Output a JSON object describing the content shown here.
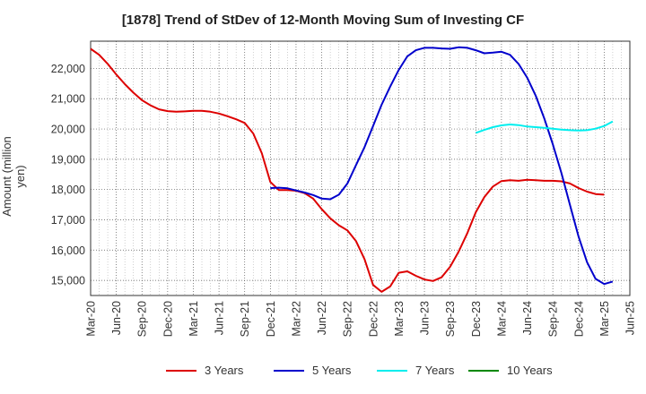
{
  "chart_data": {
    "type": "line",
    "title": "[1878]  Trend of StDev of 12-Month Moving Sum of Investing CF",
    "xlabel": "",
    "ylabel": "Amount (million yen)",
    "x_ticks": [
      "Mar-20",
      "Jun-20",
      "Sep-20",
      "Dec-20",
      "Mar-21",
      "Jun-21",
      "Sep-21",
      "Dec-21",
      "Mar-22",
      "Jun-22",
      "Sep-22",
      "Dec-22",
      "Mar-23",
      "Jun-23",
      "Sep-23",
      "Dec-23",
      "Mar-24",
      "Jun-24",
      "Sep-24",
      "Dec-24",
      "Mar-25",
      "Jun-25"
    ],
    "y_ticks": [
      15000,
      16000,
      17000,
      18000,
      19000,
      20000,
      21000,
      22000
    ],
    "y_tick_labels": [
      "15,000",
      "16,000",
      "17,000",
      "18,000",
      "19,000",
      "20,000",
      "21,000",
      "22,000"
    ],
    "ylim": [
      14500,
      22900
    ],
    "grid": true,
    "legend_position": "bottom",
    "series": [
      {
        "name": "3 Years",
        "color": "#dd0000",
        "start": "Mar-20",
        "values": [
          22650,
          22450,
          22150,
          21800,
          21480,
          21200,
          20950,
          20780,
          20650,
          20590,
          20570,
          20580,
          20600,
          20600,
          20570,
          20510,
          20420,
          20320,
          20200,
          19850,
          19200,
          18250,
          17980,
          17980,
          17960,
          17880,
          17700,
          17350,
          17050,
          16820,
          16650,
          16300,
          15700,
          14850,
          14620,
          14800,
          15250,
          15300,
          15150,
          15030,
          14980,
          15100,
          15450,
          15950,
          16550,
          17250,
          17750,
          18100,
          18280,
          18310,
          18290,
          18320,
          18310,
          18290,
          18290,
          18270,
          18200,
          18050,
          17930,
          17850,
          17830
        ]
      },
      {
        "name": "5 Years",
        "color": "#0000cc",
        "start": "Dec-21",
        "values": [
          18050,
          18060,
          18040,
          17970,
          17900,
          17820,
          17700,
          17680,
          17830,
          18200,
          18800,
          19400,
          20100,
          20800,
          21400,
          21950,
          22400,
          22600,
          22680,
          22680,
          22660,
          22650,
          22700,
          22680,
          22600,
          22500,
          22520,
          22550,
          22450,
          22150,
          21700,
          21100,
          20350,
          19500,
          18550,
          17500,
          16450,
          15600,
          15050,
          14880,
          14960
        ]
      },
      {
        "name": "7 Years",
        "color": "#00eeee",
        "start": "Dec-23",
        "values": [
          19870,
          19970,
          20060,
          20120,
          20150,
          20130,
          20080,
          20060,
          20040,
          20010,
          19980,
          19960,
          19950,
          19960,
          20010,
          20100,
          20250
        ]
      },
      {
        "name": "10 Years",
        "color": "#008800",
        "start": "Dec-23",
        "values": []
      }
    ]
  }
}
